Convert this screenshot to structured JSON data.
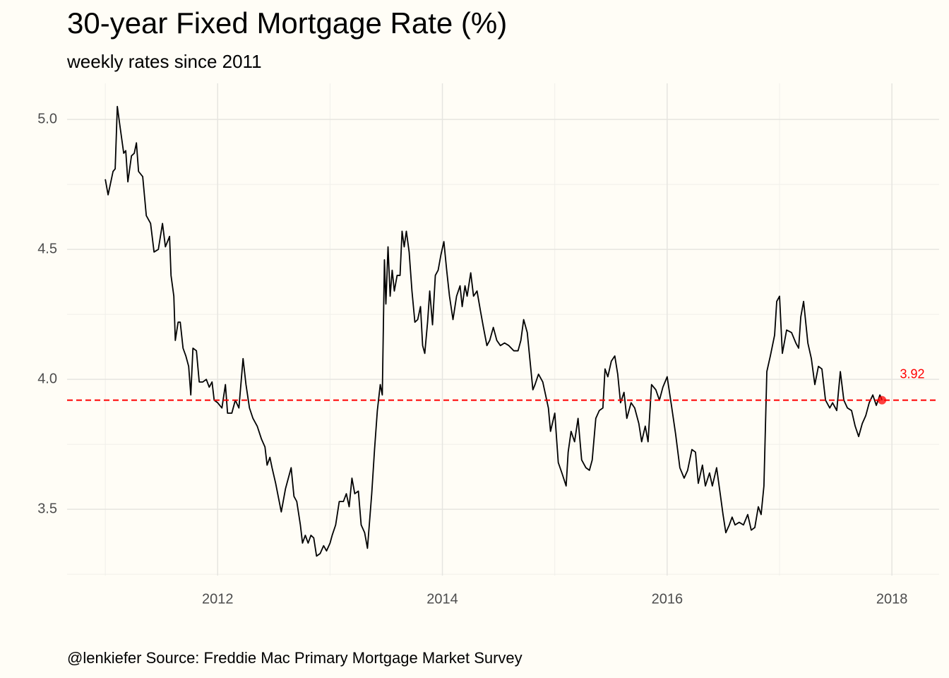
{
  "chart_data": {
    "type": "line",
    "title": "30-year Fixed Mortgage Rate (%)",
    "subtitle": "weekly rates since 2011",
    "caption": "@lenkiefer Source: Freddie Mac Primary Mortgage Market Survey",
    "color": "#000000",
    "hline": 3.92,
    "hline_color": "#ff0000",
    "xlim": [
      2010.66,
      2018.42
    ],
    "xticks": [
      2012,
      2014,
      2016,
      2018
    ],
    "xminor": [
      2011,
      2013,
      2015,
      2017
    ],
    "ylim": [
      3.245,
      5.139
    ],
    "yticks": [
      {
        "value": 3.5,
        "label": "3.5"
      },
      {
        "value": 4,
        "label": "4.0"
      },
      {
        "value": 4.5,
        "label": "4.5"
      },
      {
        "value": 5,
        "label": "5.0"
      }
    ],
    "yminor": [
      3.25,
      3.75,
      4.25,
      4.75
    ],
    "grid": true,
    "x": [
      2011.0,
      2011.025,
      2011.069,
      2011.088,
      2011.107,
      2011.132,
      2011.164,
      2011.182,
      2011.201,
      2011.233,
      2011.258,
      2011.277,
      2011.296,
      2011.333,
      2011.365,
      2011.403,
      2011.434,
      2011.472,
      2011.509,
      2011.535,
      2011.572,
      2011.585,
      2011.61,
      2011.623,
      2011.648,
      2011.667,
      2011.692,
      2011.717,
      2011.742,
      2011.761,
      2011.78,
      2011.811,
      2011.836,
      2011.868,
      2011.899,
      2011.925,
      2011.95,
      2011.969,
      2012.0,
      2012.038,
      2012.069,
      2012.088,
      2012.126,
      2012.157,
      2012.189,
      2012.226,
      2012.252,
      2012.283,
      2012.314,
      2012.352,
      2012.39,
      2012.421,
      2012.44,
      2012.465,
      2012.484,
      2012.516,
      2012.566,
      2012.604,
      2012.654,
      2012.679,
      2012.704,
      2012.736,
      2012.755,
      2012.78,
      2012.805,
      2012.83,
      2012.855,
      2012.88,
      2012.912,
      2012.943,
      2012.969,
      2013.0,
      2013.019,
      2013.05,
      2013.082,
      2013.119,
      2013.145,
      2013.17,
      2013.195,
      2013.22,
      2013.252,
      2013.277,
      2013.308,
      2013.333,
      2013.371,
      2013.396,
      2013.421,
      2013.447,
      2013.465,
      2013.484,
      2013.497,
      2013.516,
      2013.535,
      2013.553,
      2013.572,
      2013.597,
      2013.623,
      2013.641,
      2013.66,
      2013.679,
      2013.704,
      2013.729,
      2013.755,
      2013.78,
      2013.805,
      2013.824,
      2013.843,
      2013.868,
      2013.887,
      2013.912,
      2013.937,
      2013.962,
      2013.987,
      2014.013,
      2014.038,
      2014.063,
      2014.094,
      2014.126,
      2014.157,
      2014.176,
      2014.201,
      2014.22,
      2014.252,
      2014.277,
      2014.308,
      2014.34,
      2014.365,
      2014.396,
      2014.421,
      2014.453,
      2014.484,
      2014.516,
      2014.553,
      2014.591,
      2014.635,
      2014.673,
      2014.698,
      2014.723,
      2014.755,
      2014.78,
      2014.805,
      2014.824,
      2014.855,
      2014.893,
      2014.918,
      2014.943,
      2014.962,
      2015.0,
      2015.031,
      2015.063,
      2015.101,
      2015.119,
      2015.145,
      2015.176,
      2015.207,
      2015.239,
      2015.277,
      2015.308,
      2015.333,
      2015.365,
      2015.396,
      2015.428,
      2015.447,
      2015.472,
      2015.503,
      2015.534,
      2015.56,
      2015.585,
      2015.616,
      2015.641,
      2015.679,
      2015.711,
      2015.748,
      2015.773,
      2015.805,
      2015.83,
      2015.861,
      2015.899,
      2015.931,
      2015.962,
      2016.0,
      2016.038,
      2016.075,
      2016.113,
      2016.151,
      2016.182,
      2016.22,
      2016.252,
      2016.277,
      2016.314,
      2016.34,
      2016.377,
      2016.402,
      2016.44,
      2016.472,
      2016.497,
      2016.522,
      2016.553,
      2016.578,
      2016.604,
      2016.641,
      2016.679,
      2016.717,
      2016.748,
      2016.78,
      2016.811,
      2016.836,
      2016.861,
      2016.887,
      2016.918,
      2016.956,
      2016.975,
      2017.0,
      2017.025,
      2017.063,
      2017.107,
      2017.145,
      2017.17,
      2017.189,
      2017.214,
      2017.252,
      2017.283,
      2017.314,
      2017.346,
      2017.377,
      2017.409,
      2017.447,
      2017.472,
      2017.509,
      2017.541,
      2017.572,
      2017.604,
      2017.641,
      2017.673,
      2017.704,
      2017.736,
      2017.767,
      2017.798,
      2017.83,
      2017.861,
      2017.893,
      2017.912
    ],
    "values": [
      4.77,
      4.71,
      4.8,
      4.81,
      5.05,
      4.97,
      4.87,
      4.88,
      4.76,
      4.86,
      4.87,
      4.91,
      4.8,
      4.78,
      4.63,
      4.6,
      4.49,
      4.5,
      4.6,
      4.51,
      4.55,
      4.4,
      4.32,
      4.15,
      4.22,
      4.22,
      4.12,
      4.09,
      4.05,
      3.94,
      4.12,
      4.11,
      3.99,
      3.99,
      4.0,
      3.97,
      3.99,
      3.92,
      3.91,
      3.89,
      3.98,
      3.87,
      3.87,
      3.92,
      3.89,
      4.08,
      3.98,
      3.89,
      3.85,
      3.82,
      3.77,
      3.74,
      3.67,
      3.7,
      3.66,
      3.6,
      3.49,
      3.58,
      3.66,
      3.55,
      3.53,
      3.44,
      3.37,
      3.4,
      3.37,
      3.4,
      3.39,
      3.32,
      3.33,
      3.36,
      3.34,
      3.37,
      3.4,
      3.44,
      3.53,
      3.53,
      3.56,
      3.51,
      3.62,
      3.56,
      3.57,
      3.44,
      3.41,
      3.35,
      3.56,
      3.73,
      3.88,
      3.98,
      3.94,
      4.46,
      4.29,
      4.51,
      4.32,
      4.42,
      4.34,
      4.4,
      4.4,
      4.57,
      4.51,
      4.57,
      4.49,
      4.34,
      4.22,
      4.23,
      4.28,
      4.13,
      4.1,
      4.22,
      4.34,
      4.21,
      4.4,
      4.42,
      4.48,
      4.53,
      4.42,
      4.32,
      4.23,
      4.32,
      4.36,
      4.28,
      4.36,
      4.32,
      4.41,
      4.32,
      4.34,
      4.26,
      4.2,
      4.13,
      4.15,
      4.2,
      4.15,
      4.13,
      4.14,
      4.13,
      4.11,
      4.11,
      4.15,
      4.23,
      4.18,
      4.07,
      3.96,
      3.98,
      4.02,
      3.99,
      3.94,
      3.89,
      3.8,
      3.87,
      3.68,
      3.64,
      3.59,
      3.72,
      3.8,
      3.76,
      3.85,
      3.69,
      3.66,
      3.65,
      3.69,
      3.85,
      3.88,
      3.89,
      4.04,
      4.01,
      4.07,
      4.09,
      4.02,
      3.91,
      3.95,
      3.85,
      3.91,
      3.89,
      3.83,
      3.76,
      3.82,
      3.76,
      3.98,
      3.96,
      3.92,
      3.97,
      4.01,
      3.9,
      3.79,
      3.66,
      3.62,
      3.65,
      3.73,
      3.72,
      3.6,
      3.67,
      3.59,
      3.64,
      3.59,
      3.66,
      3.56,
      3.48,
      3.41,
      3.44,
      3.47,
      3.44,
      3.45,
      3.44,
      3.48,
      3.42,
      3.43,
      3.51,
      3.48,
      3.59,
      4.03,
      4.09,
      4.17,
      4.3,
      4.32,
      4.1,
      4.19,
      4.18,
      4.14,
      4.12,
      4.24,
      4.3,
      4.14,
      4.08,
      3.98,
      4.05,
      4.04,
      3.92,
      3.89,
      3.91,
      3.88,
      4.03,
      3.92,
      3.89,
      3.88,
      3.82,
      3.78,
      3.83,
      3.86,
      3.91,
      3.94,
      3.9,
      3.94,
      3.92
    ]
  }
}
